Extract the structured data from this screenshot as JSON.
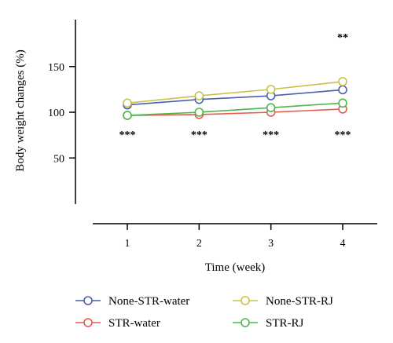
{
  "chart_data": {
    "type": "line",
    "title": "",
    "xlabel": "Time (week)",
    "ylabel": "Body weight changes (%)",
    "x": [
      1,
      2,
      3,
      4
    ],
    "xticks": [
      "1",
      "2",
      "3",
      "4"
    ],
    "yticks": [
      "50",
      "100",
      "150"
    ],
    "ylim": [
      50,
      150
    ],
    "grid": false,
    "legend_position": "bottom",
    "series": [
      {
        "name": "None-STR-water",
        "color": "#4a5fb0",
        "values": [
          108,
          114,
          118,
          124.5
        ],
        "error": [
          0,
          0,
          0,
          0
        ]
      },
      {
        "name": "None-STR-RJ",
        "color": "#c9c24a",
        "values": [
          110,
          118,
          125,
          133.5
        ],
        "error": [
          0,
          0,
          0,
          3
        ]
      },
      {
        "name": "STR-water",
        "color": "#e8594f",
        "values": [
          96.5,
          97.5,
          100,
          103.5
        ],
        "error": [
          0,
          0,
          0,
          0
        ]
      },
      {
        "name": "STR-RJ",
        "color": "#4cb84c",
        "values": [
          96.5,
          100,
          105,
          110
        ],
        "error": [
          0,
          0,
          0,
          0
        ]
      }
    ],
    "annotations": [
      {
        "x": 1,
        "text": "***",
        "position": "below"
      },
      {
        "x": 2,
        "text": "***",
        "position": "below"
      },
      {
        "x": 3,
        "text": "***",
        "position": "below"
      },
      {
        "x": 4,
        "text": "***",
        "position": "below"
      },
      {
        "x": 4,
        "text": "**",
        "position": "above"
      }
    ]
  }
}
